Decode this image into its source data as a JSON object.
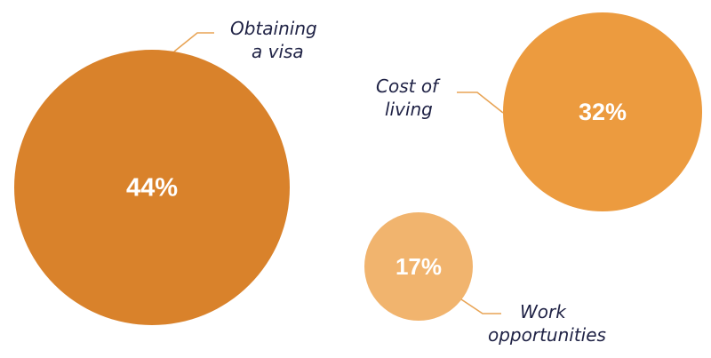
{
  "chart_data": {
    "type": "bubble",
    "unit": "%",
    "series": [
      {
        "category_lines": [
          "Obtaining",
          "a visa"
        ],
        "value": 44,
        "value_label": "44%",
        "color": "#d9822b"
      },
      {
        "category_lines": [
          "Cost of",
          "living"
        ],
        "value": 32,
        "value_label": "32%",
        "color": "#ec9b3f"
      },
      {
        "category_lines": [
          "Work",
          "opportunities"
        ],
        "value": 17,
        "value_label": "17%",
        "color": "#f1b46e"
      }
    ],
    "leader_color": "#e8a455",
    "label_color": "#1f2245"
  }
}
